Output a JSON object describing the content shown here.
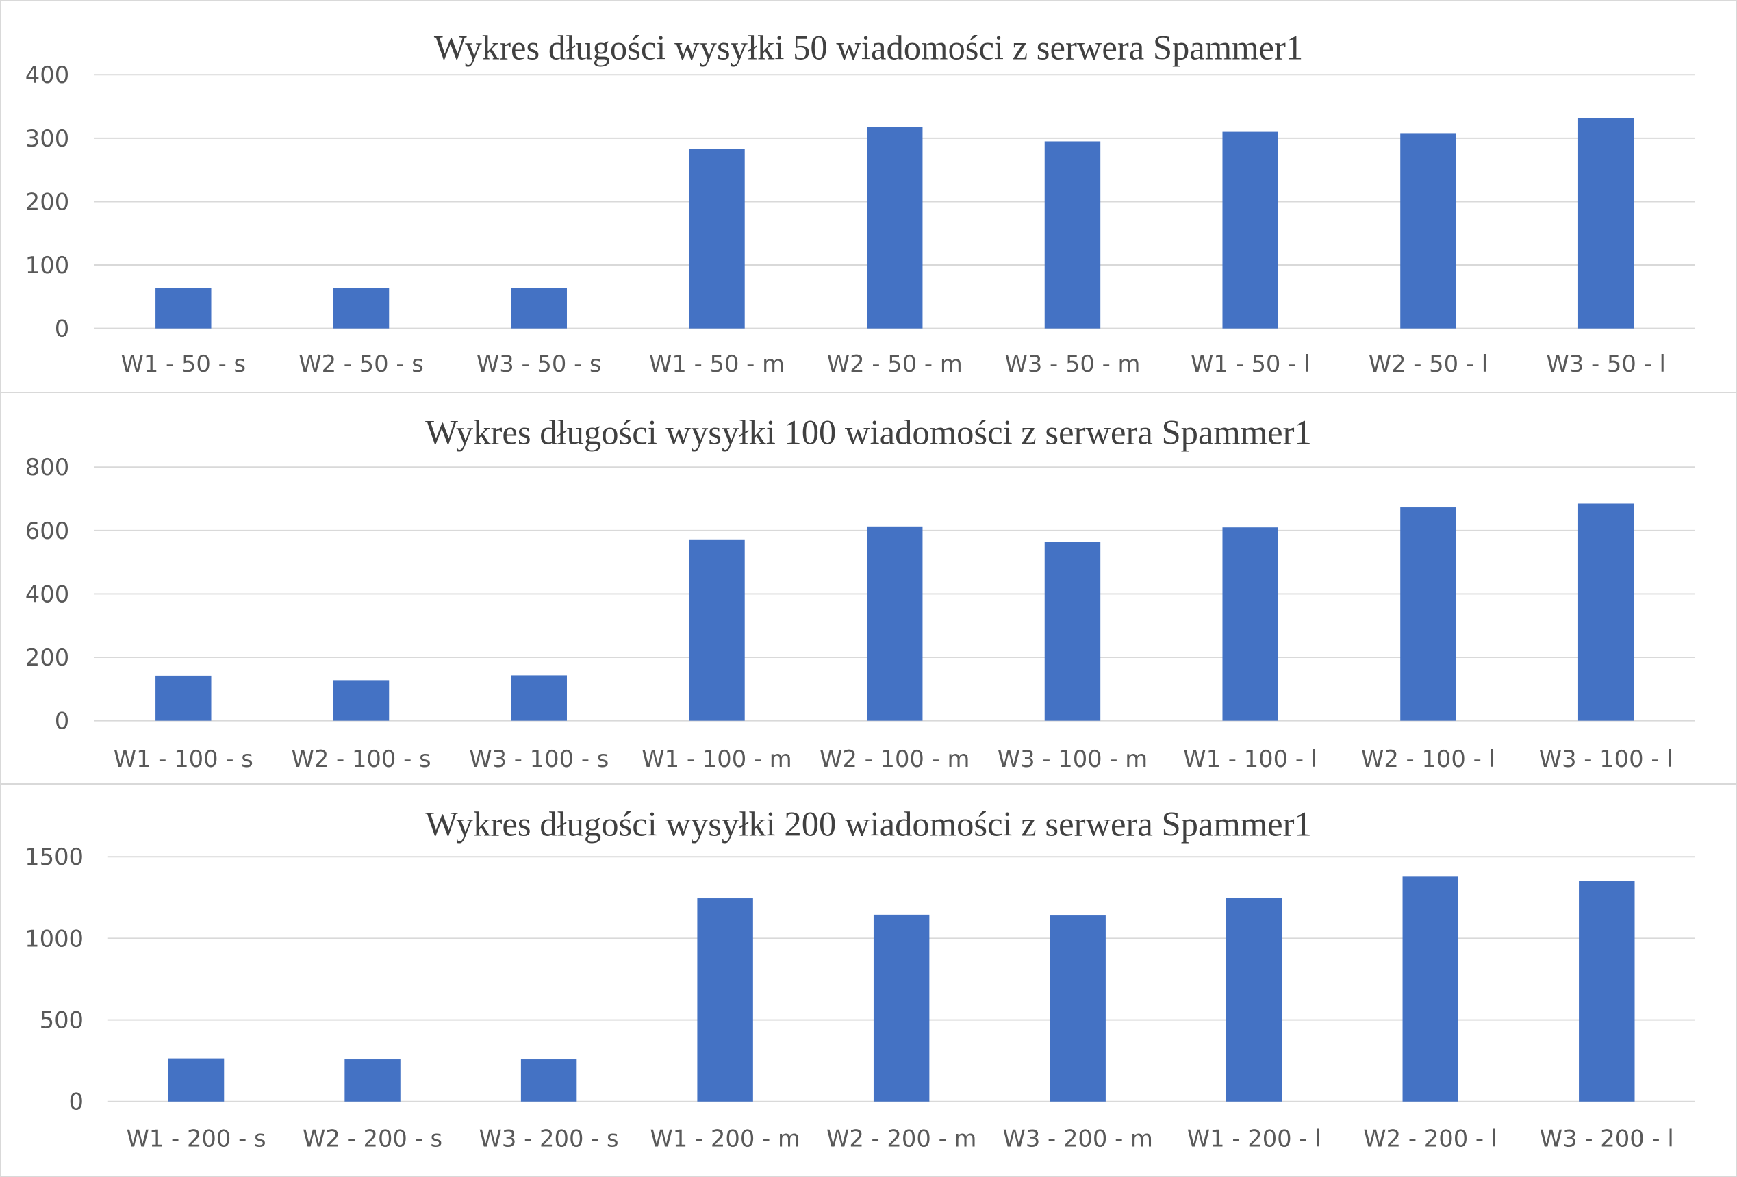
{
  "chart_data": [
    {
      "type": "bar",
      "title": "Wykres długości wysyłki 50 wiadomości z serwera Spammer1",
      "categories": [
        "W1 - 50 - s",
        "W2 - 50 - s",
        "W3 - 50 - s",
        "W1 - 50 - m",
        "W2 - 50 - m",
        "W3 - 50 - m",
        "W1 - 50 - l",
        "W2 - 50 - l",
        "W3 - 50 - l"
      ],
      "values": [
        64,
        64,
        64,
        283,
        318,
        295,
        310,
        308,
        332
      ],
      "yticks": [
        "0",
        "100",
        "200",
        "300",
        "400"
      ],
      "ylim": [
        0,
        400
      ],
      "bar_color": "#4472C4",
      "grid": true,
      "legend": false
    },
    {
      "type": "bar",
      "title": "Wykres długości wysyłki 100 wiadomości z serwera Spammer1",
      "categories": [
        "W1 - 100 - s",
        "W2 - 100 - s",
        "W3 - 100 - s",
        "W1 - 100 - m",
        "W2 - 100 - m",
        "W3 - 100 - m",
        "W1 - 100 - l",
        "W2 - 100 - l",
        "W3 - 100 - l"
      ],
      "values": [
        142,
        128,
        143,
        572,
        613,
        563,
        610,
        673,
        685
      ],
      "yticks": [
        "0",
        "200",
        "400",
        "600",
        "800"
      ],
      "ylim": [
        0,
        800
      ],
      "bar_color": "#4472C4",
      "grid": true,
      "legend": false
    },
    {
      "type": "bar",
      "title": "Wykres długości wysyłki 200 wiadomości z serwera Spammer1",
      "categories": [
        "W1 - 200 - s",
        "W2 - 200 - s",
        "W3 - 200 - s",
        "W1 - 200 - m",
        "W2 - 200 - m",
        "W3 - 200 - m",
        "W1 - 200 - l",
        "W2 - 200 - l",
        "W3 - 200 - l"
      ],
      "values": [
        265,
        259,
        259,
        1245,
        1145,
        1140,
        1247,
        1378,
        1350
      ],
      "yticks": [
        "0",
        "500",
        "1000",
        "1500"
      ],
      "ylim": [
        0,
        1500
      ],
      "bar_color": "#4472C4",
      "grid": true,
      "legend": false
    }
  ]
}
